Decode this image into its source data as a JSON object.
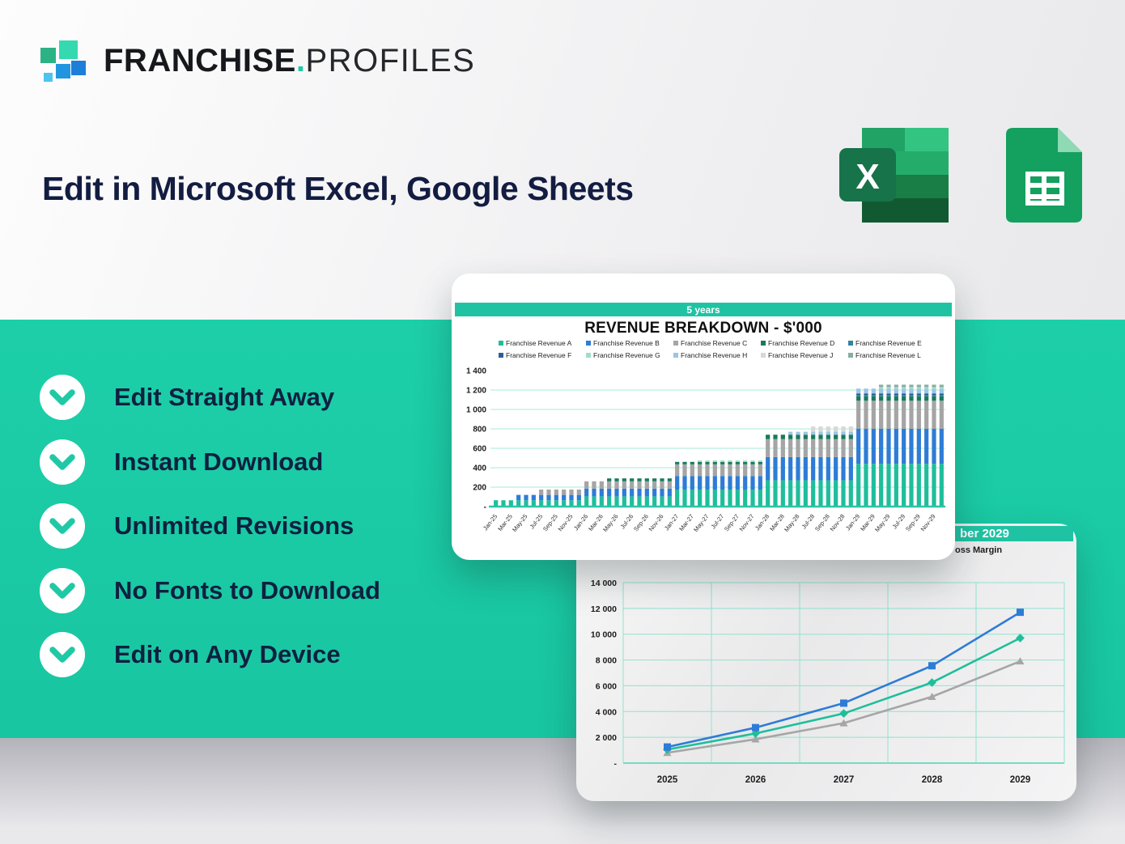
{
  "logo": {
    "bold": "FRANCHISE",
    "dot": ".",
    "light": "PROFILES"
  },
  "heading": "Edit in Microsoft Excel, Google Sheets",
  "app_icons": [
    "microsoft-excel",
    "google-sheets"
  ],
  "excel_letter": "X",
  "features": [
    "Edit Straight Away",
    "Instant Download",
    "Unlimited Revisions",
    "No Fonts to Download",
    "Edit on Any Device"
  ],
  "colors": {
    "accent_teal": "#1fc9a6",
    "band_teal": "#19c8a2",
    "heading_navy": "#131c41",
    "chart_grid": "#a5ebdb",
    "chart_axis": "#2bc4a4"
  },
  "chart_data": [
    {
      "type": "bar",
      "stacked": true,
      "header_label": "5 years",
      "title": "REVENUE BREAKDOWN - $'000",
      "y_ticks": [
        "1 400",
        "1 200",
        "1 000",
        "800",
        "600",
        "400",
        "200",
        "-"
      ],
      "ylim": [
        0,
        1400
      ],
      "x_tick_labels": [
        "Jan-25",
        "Mar-25",
        "May-25",
        "Jul-25",
        "Sep-25",
        "Nov-25",
        "Jan-26",
        "Mar-26",
        "May-26",
        "Jul-26",
        "Sep-26",
        "Nov-26",
        "Jan-27",
        "Mar-27",
        "May-27",
        "Jul-27",
        "Sep-27",
        "Nov-27",
        "Jan-28",
        "Mar-28",
        "May-28",
        "Jul-28",
        "Sep-28",
        "Nov-28",
        "Jan-29",
        "Mar-29",
        "May-29",
        "Jul-29",
        "Sep-29",
        "Nov-29"
      ],
      "bars_per_tick": 2,
      "stack_order": [
        "Franchise Revenue A",
        "Franchise Revenue B",
        "Franchise Revenue C",
        "Franchise Revenue D",
        "Franchise Revenue E",
        "Franchise Revenue F",
        "Franchise Revenue H",
        "Franchise Revenue J",
        "Franchise Revenue G",
        "Franchise Revenue L"
      ],
      "series": [
        {
          "name": "Franchise Revenue A",
          "color": "#1fbe9b",
          "values": [
            65,
            65,
            65,
            65,
            65,
            65,
            65,
            65,
            65,
            65,
            65,
            65,
            105,
            105,
            105,
            105,
            105,
            105,
            105,
            105,
            105,
            105,
            105,
            105,
            175,
            175,
            175,
            175,
            175,
            175,
            175,
            175,
            175,
            175,
            175,
            175,
            270,
            270,
            270,
            270,
            270,
            270,
            270,
            270,
            270,
            270,
            270,
            270,
            440,
            440,
            440,
            440,
            440,
            440,
            440,
            440,
            440,
            440,
            440,
            440
          ]
        },
        {
          "name": "Franchise Revenue B",
          "color": "#2e7cd6",
          "values": [
            0,
            0,
            0,
            55,
            55,
            55,
            55,
            55,
            55,
            55,
            55,
            55,
            80,
            80,
            80,
            80,
            80,
            80,
            80,
            80,
            80,
            80,
            80,
            80,
            140,
            140,
            140,
            140,
            140,
            140,
            140,
            140,
            140,
            140,
            140,
            140,
            240,
            240,
            240,
            240,
            240,
            240,
            240,
            240,
            240,
            240,
            240,
            240,
            360,
            360,
            360,
            360,
            360,
            360,
            360,
            360,
            360,
            360,
            360,
            360
          ]
        },
        {
          "name": "Franchise Revenue C",
          "color": "#a5a5a5",
          "values": [
            0,
            0,
            0,
            0,
            0,
            0,
            55,
            55,
            55,
            55,
            55,
            55,
            75,
            75,
            75,
            75,
            75,
            75,
            75,
            75,
            75,
            75,
            75,
            75,
            120,
            120,
            120,
            120,
            120,
            120,
            120,
            120,
            120,
            120,
            120,
            120,
            185,
            185,
            185,
            185,
            185,
            185,
            185,
            185,
            185,
            185,
            185,
            185,
            290,
            290,
            290,
            290,
            290,
            290,
            290,
            290,
            290,
            290,
            290,
            290
          ]
        },
        {
          "name": "Franchise Revenue D",
          "color": "#157b5b",
          "values": [
            0,
            0,
            0,
            0,
            0,
            0,
            0,
            0,
            0,
            0,
            0,
            0,
            0,
            0,
            0,
            30,
            30,
            30,
            30,
            30,
            30,
            30,
            30,
            30,
            25,
            25,
            25,
            25,
            25,
            25,
            25,
            25,
            25,
            25,
            25,
            25,
            45,
            45,
            45,
            45,
            45,
            45,
            45,
            45,
            45,
            45,
            45,
            45,
            45,
            45,
            45,
            45,
            45,
            45,
            45,
            45,
            45,
            45,
            45,
            45
          ]
        },
        {
          "name": "Franchise Revenue E",
          "color": "#31859c",
          "values": [
            0,
            0,
            0,
            0,
            0,
            0,
            0,
            0,
            0,
            0,
            0,
            0,
            0,
            0,
            0,
            0,
            0,
            0,
            0,
            0,
            0,
            0,
            0,
            0,
            0,
            0,
            0,
            0,
            0,
            0,
            0,
            0,
            0,
            0,
            0,
            0,
            0,
            0,
            0,
            0,
            0,
            0,
            0,
            0,
            0,
            0,
            0,
            0,
            15,
            15,
            15,
            15,
            15,
            15,
            15,
            15,
            15,
            15,
            15,
            15
          ]
        },
        {
          "name": "Franchise Revenue F",
          "color": "#2a6099",
          "values": [
            0,
            0,
            0,
            0,
            0,
            0,
            0,
            0,
            0,
            0,
            0,
            0,
            0,
            0,
            0,
            0,
            0,
            0,
            0,
            0,
            0,
            0,
            0,
            0,
            0,
            0,
            0,
            0,
            0,
            0,
            0,
            0,
            0,
            0,
            0,
            0,
            0,
            0,
            0,
            0,
            0,
            0,
            0,
            0,
            0,
            0,
            0,
            0,
            15,
            15,
            15,
            15,
            15,
            15,
            15,
            15,
            15,
            15,
            15,
            15
          ]
        },
        {
          "name": "Franchise Revenue G",
          "color": "#a0dfc7",
          "values": [
            0,
            0,
            0,
            0,
            0,
            0,
            0,
            0,
            0,
            0,
            0,
            0,
            0,
            0,
            0,
            0,
            0,
            0,
            0,
            0,
            0,
            0,
            0,
            0,
            0,
            0,
            0,
            15,
            15,
            15,
            15,
            15,
            15,
            15,
            15,
            15,
            0,
            0,
            0,
            0,
            0,
            0,
            0,
            0,
            0,
            0,
            0,
            0,
            0,
            0,
            0,
            15,
            15,
            15,
            15,
            15,
            15,
            15,
            15,
            15
          ]
        },
        {
          "name": "Franchise Revenue H",
          "color": "#9dc3e6",
          "values": [
            0,
            0,
            0,
            0,
            0,
            0,
            0,
            0,
            0,
            0,
            0,
            0,
            0,
            0,
            0,
            0,
            0,
            0,
            0,
            0,
            0,
            0,
            0,
            0,
            0,
            0,
            0,
            0,
            0,
            0,
            0,
            0,
            0,
            0,
            0,
            0,
            0,
            0,
            0,
            30,
            30,
            30,
            30,
            30,
            30,
            30,
            30,
            30,
            50,
            50,
            50,
            50,
            50,
            50,
            50,
            50,
            50,
            50,
            50,
            50
          ]
        },
        {
          "name": "Franchise Revenue J",
          "color": "#d8d8d8",
          "values": [
            0,
            0,
            0,
            0,
            0,
            0,
            0,
            0,
            0,
            0,
            0,
            0,
            0,
            0,
            0,
            0,
            0,
            0,
            0,
            0,
            0,
            0,
            0,
            0,
            0,
            0,
            0,
            0,
            0,
            0,
            0,
            0,
            0,
            0,
            0,
            0,
            0,
            0,
            0,
            0,
            0,
            0,
            55,
            55,
            55,
            55,
            55,
            55,
            0,
            0,
            0,
            0,
            0,
            0,
            0,
            0,
            0,
            0,
            0,
            0
          ]
        },
        {
          "name": "Franchise Revenue L",
          "color": "#87af9e",
          "values": [
            0,
            0,
            0,
            0,
            0,
            0,
            0,
            0,
            0,
            0,
            0,
            0,
            0,
            0,
            0,
            0,
            0,
            0,
            0,
            0,
            0,
            0,
            0,
            0,
            0,
            0,
            0,
            0,
            0,
            0,
            0,
            0,
            0,
            0,
            0,
            0,
            0,
            0,
            0,
            0,
            0,
            0,
            0,
            0,
            0,
            0,
            0,
            0,
            0,
            0,
            0,
            25,
            25,
            25,
            25,
            25,
            25,
            25,
            25,
            25
          ]
        }
      ]
    },
    {
      "type": "line",
      "header_visible": "ber 2029",
      "legend_visible": "oss Margin",
      "y_ticks": [
        "14 000",
        "12 000",
        "10 000",
        "8 000",
        "6 000",
        "4 000",
        "2 000",
        "-"
      ],
      "ylim": [
        0,
        14000
      ],
      "categories": [
        "2025",
        "2026",
        "2027",
        "2028",
        "2029"
      ],
      "series": [
        {
          "marker": "square",
          "color": "#2e7cd6",
          "values": [
            1250,
            2750,
            4650,
            7550,
            11700
          ]
        },
        {
          "marker": "diamond",
          "color": "#1fbe9b",
          "values": [
            1050,
            2300,
            3850,
            6250,
            9700
          ]
        },
        {
          "marker": "triangle",
          "color": "#a6a6a6",
          "values": [
            800,
            1850,
            3100,
            5150,
            7900
          ]
        }
      ]
    }
  ]
}
